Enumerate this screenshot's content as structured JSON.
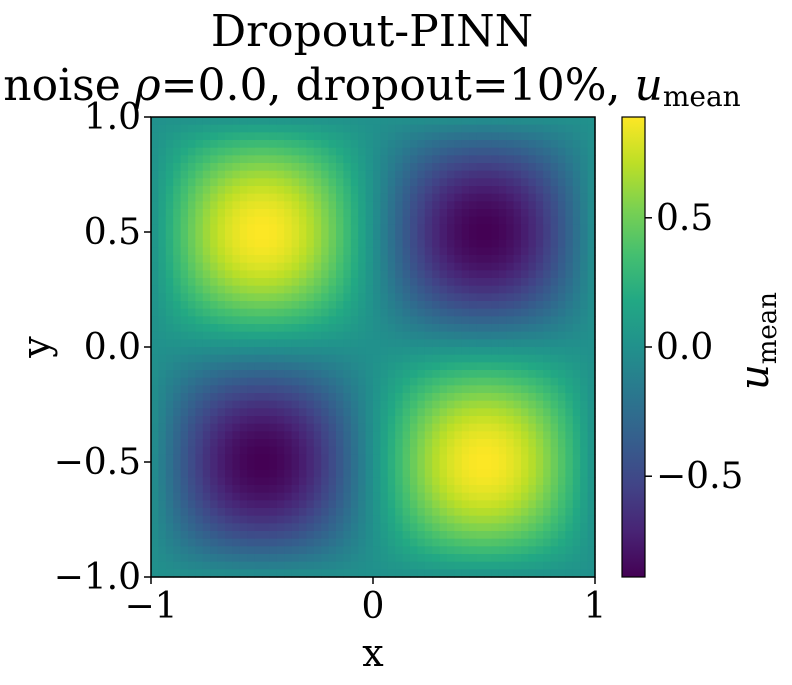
{
  "chart_data": {
    "type": "heatmap",
    "title": "Dropout-PINN",
    "subtitle_prefix": "noise ",
    "subtitle_rho": "ρ",
    "subtitle_middle": "=0.0, dropout=10%, ",
    "subtitle_u": "u",
    "subtitle_sub": "mean",
    "xlabel": "x",
    "ylabel": "y",
    "xlim": [
      -1,
      1
    ],
    "ylim": [
      -1,
      1
    ],
    "xticks": [
      {
        "value": -1,
        "label": "−1"
      },
      {
        "value": 0,
        "label": "0"
      },
      {
        "value": 1,
        "label": "1"
      }
    ],
    "yticks": [
      {
        "value": 1.0,
        "label": "1.0"
      },
      {
        "value": 0.5,
        "label": "0.5"
      },
      {
        "value": 0.0,
        "label": "0.0"
      },
      {
        "value": -0.5,
        "label": "−0.5"
      },
      {
        "value": -1.0,
        "label": "−1.0"
      }
    ],
    "field": "u(x,y) = -sin(pi*x)*sin(pi*y) * 0.89",
    "amplitude": 0.89,
    "grid_resolution": 60,
    "colormap": "viridis",
    "colorbar": {
      "label_u": "u",
      "label_sub": "mean",
      "vmin": -0.89,
      "vmax": 0.89,
      "ticks": [
        {
          "value": 0.5,
          "label": "0.5"
        },
        {
          "value": 0.0,
          "label": "0.0"
        },
        {
          "value": -0.5,
          "label": "−0.5"
        }
      ]
    },
    "grid": false
  }
}
